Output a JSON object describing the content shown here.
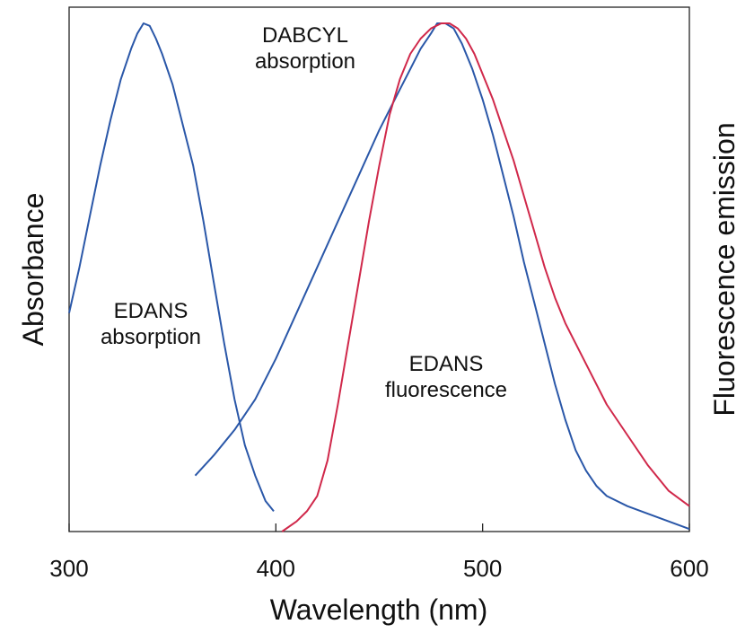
{
  "chart_data": {
    "type": "line",
    "title": "",
    "xlabel": "Wavelength (nm)",
    "ylabel_left": "Absorbance",
    "ylabel_right": "Fluorescence emission",
    "xlim": [
      300,
      600
    ],
    "ylim": [
      0,
      1
    ],
    "xticks": [
      300,
      400,
      500,
      600
    ],
    "grid": false,
    "y_units": "relative intensity (unlabeled, normalized)",
    "series": [
      {
        "name": "EDANS absorption",
        "label_lines": [
          "EDANS",
          "absorption"
        ],
        "color": "#2a57a8",
        "x": [
          300,
          305,
          310,
          315,
          320,
          325,
          330,
          333,
          336,
          339,
          342,
          345,
          350,
          355,
          360,
          365,
          370,
          375,
          380,
          385,
          390,
          395,
          399
        ],
        "y": [
          0.43,
          0.52,
          0.62,
          0.72,
          0.81,
          0.89,
          0.95,
          0.98,
          1.0,
          0.995,
          0.97,
          0.94,
          0.88,
          0.8,
          0.72,
          0.61,
          0.49,
          0.37,
          0.26,
          0.17,
          0.11,
          0.06,
          0.04
        ]
      },
      {
        "name": "DABCYL absorption",
        "label_lines": [
          "DABCYL",
          "absorption"
        ],
        "color": "#2a57a8",
        "x": [
          361,
          370,
          380,
          390,
          400,
          410,
          420,
          430,
          440,
          450,
          460,
          465,
          470,
          475,
          478,
          482,
          486,
          490,
          495,
          500,
          505,
          510,
          515,
          520,
          525,
          530,
          535,
          540,
          545,
          550,
          555,
          560,
          570,
          580,
          590,
          600
        ],
        "y": [
          0.11,
          0.15,
          0.2,
          0.26,
          0.34,
          0.43,
          0.52,
          0.61,
          0.7,
          0.79,
          0.87,
          0.91,
          0.95,
          0.98,
          1.0,
          1.0,
          0.99,
          0.96,
          0.91,
          0.85,
          0.78,
          0.7,
          0.62,
          0.53,
          0.45,
          0.37,
          0.29,
          0.22,
          0.16,
          0.12,
          0.09,
          0.07,
          0.05,
          0.035,
          0.02,
          0.005
        ]
      },
      {
        "name": "EDANS fluorescence",
        "label_lines": [
          "EDANS",
          "fluorescence"
        ],
        "color": "#d0284a",
        "x": [
          403,
          410,
          415,
          420,
          425,
          430,
          435,
          440,
          445,
          450,
          455,
          460,
          465,
          470,
          475,
          480,
          484,
          488,
          492,
          496,
          500,
          505,
          510,
          515,
          520,
          525,
          530,
          535,
          540,
          545,
          550,
          555,
          560,
          570,
          580,
          590,
          600
        ],
        "y": [
          0.0,
          0.02,
          0.04,
          0.07,
          0.14,
          0.25,
          0.37,
          0.49,
          0.61,
          0.72,
          0.82,
          0.89,
          0.94,
          0.97,
          0.99,
          1.0,
          1.0,
          0.99,
          0.97,
          0.94,
          0.9,
          0.85,
          0.79,
          0.73,
          0.66,
          0.59,
          0.52,
          0.46,
          0.41,
          0.37,
          0.33,
          0.29,
          0.25,
          0.19,
          0.13,
          0.08,
          0.05
        ]
      }
    ]
  }
}
